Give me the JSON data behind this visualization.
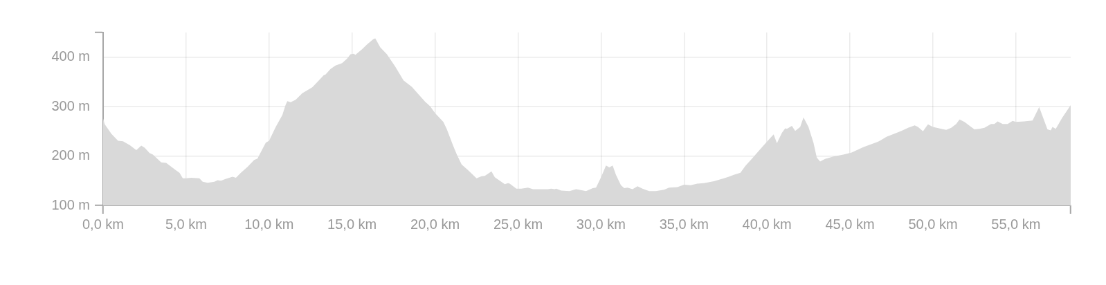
{
  "chart_data": {
    "type": "area",
    "color": "#d9d9d9",
    "grid": true,
    "xlim": [
      0,
      58.3
    ],
    "xticks": [
      {
        "value": 0,
        "label": "0,0 km"
      },
      {
        "value": 5,
        "label": "5,0 km"
      },
      {
        "value": 10,
        "label": "10,0 km"
      },
      {
        "value": 15,
        "label": "15,0 km"
      },
      {
        "value": 20,
        "label": "20,0 km"
      },
      {
        "value": 25,
        "label": "25,0 km"
      },
      {
        "value": 30,
        "label": "30,0 km"
      },
      {
        "value": 35,
        "label": "35,0 km"
      },
      {
        "value": 40,
        "label": "40,0 km"
      },
      {
        "value": 45,
        "label": "45,0 km"
      },
      {
        "value": 50,
        "label": "50,0 km"
      },
      {
        "value": 55,
        "label": "55,0 km"
      },
      {
        "value": 58.3,
        "label": null
      }
    ],
    "ylim": [
      100,
      450
    ],
    "yticks": [
      {
        "value": 100,
        "label": "100 m"
      },
      {
        "value": 200,
        "label": "200 m"
      },
      {
        "value": 300,
        "label": "300 m"
      },
      {
        "value": 400,
        "label": "400 m"
      },
      {
        "value": 450,
        "label": null
      }
    ],
    "x": [
      0,
      0.1,
      0.5,
      0.9,
      1.2,
      1.6,
      2.0,
      2.3,
      2.5,
      2.8,
      3.0,
      3.5,
      3.8,
      4.2,
      4.6,
      4.8,
      5.0,
      5.3,
      5.8,
      6.0,
      6.3,
      6.7,
      6.9,
      7.1,
      7.4,
      7.8,
      8.0,
      8.3,
      8.7,
      9.1,
      9.3,
      9.8,
      10.0,
      10.4,
      10.8,
      11.0,
      11.1,
      11.3,
      11.6,
      12.0,
      12.6,
      13.0,
      13.3,
      13.4,
      13.7,
      14.0,
      14.4,
      14.7,
      14.9,
      15.1,
      15.2,
      15.6,
      15.9,
      16.3,
      16.4,
      16.7,
      17.1,
      17.6,
      18.1,
      18.6,
      19.0,
      19.4,
      19.7,
      20.0,
      20.5,
      20.7,
      21.1,
      21.3,
      21.6,
      22.0,
      22.5,
      22.8,
      23.0,
      23.4,
      23.6,
      24.2,
      24.4,
      24.5,
      24.9,
      25.2,
      25.6,
      25.9,
      26.8,
      27.0,
      27.2,
      27.3,
      27.6,
      28.1,
      28.5,
      29.1,
      29.5,
      29.7,
      30.0,
      30.3,
      30.5,
      30.7,
      30.9,
      31.2,
      31.4,
      31.6,
      31.9,
      32.2,
      32.5,
      32.9,
      33.3,
      33.8,
      34.1,
      34.6,
      35.0,
      35.4,
      35.8,
      36.2,
      36.8,
      37.3,
      37.7,
      38.0,
      38.4,
      38.7,
      39.1,
      39.6,
      40.0,
      40.4,
      40.6,
      40.9,
      41.1,
      41.2,
      41.5,
      41.7,
      42.0,
      42.2,
      42.5,
      42.8,
      43.0,
      43.2,
      43.5,
      44.0,
      44.6,
      45.1,
      45.8,
      46.7,
      47.2,
      48.1,
      48.5,
      48.9,
      49.1,
      49.4,
      49.7,
      50.0,
      50.5,
      50.8,
      51.1,
      51.4,
      51.6,
      51.9,
      52.3,
      52.5,
      52.8,
      53.1,
      53.5,
      53.7,
      53.9,
      54.2,
      54.5,
      54.8,
      55.0,
      55.5,
      56.0,
      56.4,
      56.9,
      57.1,
      57.2,
      57.4,
      57.8,
      58.3
    ],
    "values": [
      276,
      264,
      245,
      231,
      230,
      222,
      212,
      221,
      217,
      206,
      203,
      187,
      186,
      176,
      166,
      155,
      155,
      156,
      155,
      148,
      146,
      148,
      151,
      150,
      154,
      158,
      156,
      166,
      178,
      192,
      195,
      227,
      231,
      259,
      283,
      304,
      311,
      309,
      314,
      327,
      339,
      353,
      364,
      365,
      376,
      383,
      388,
      397,
      406,
      407,
      405,
      416,
      426,
      437,
      438,
      420,
      406,
      381,
      353,
      340,
      325,
      310,
      301,
      287,
      269,
      255,
      220,
      204,
      183,
      171,
      155,
      159,
      160,
      169,
      157,
      143,
      145,
      144,
      134,
      134,
      136,
      133,
      133,
      134,
      133,
      134,
      130,
      129,
      133,
      129,
      135,
      136,
      157,
      181,
      177,
      181,
      162,
      141,
      135,
      136,
      133,
      139,
      134,
      129,
      129,
      132,
      136,
      137,
      142,
      141,
      144,
      145,
      149,
      154,
      158,
      162,
      166,
      180,
      195,
      214,
      229,
      244,
      226,
      247,
      256,
      255,
      261,
      251,
      259,
      278,
      259,
      227,
      197,
      189,
      194,
      199,
      203,
      207,
      218,
      229,
      239,
      251,
      257,
      262,
      259,
      250,
      264,
      259,
      255,
      253,
      257,
      265,
      274,
      269,
      259,
      254,
      255,
      257,
      265,
      265,
      270,
      265,
      265,
      271,
      269,
      270,
      272,
      299,
      254,
      252,
      259,
      255,
      278,
      303
    ]
  }
}
